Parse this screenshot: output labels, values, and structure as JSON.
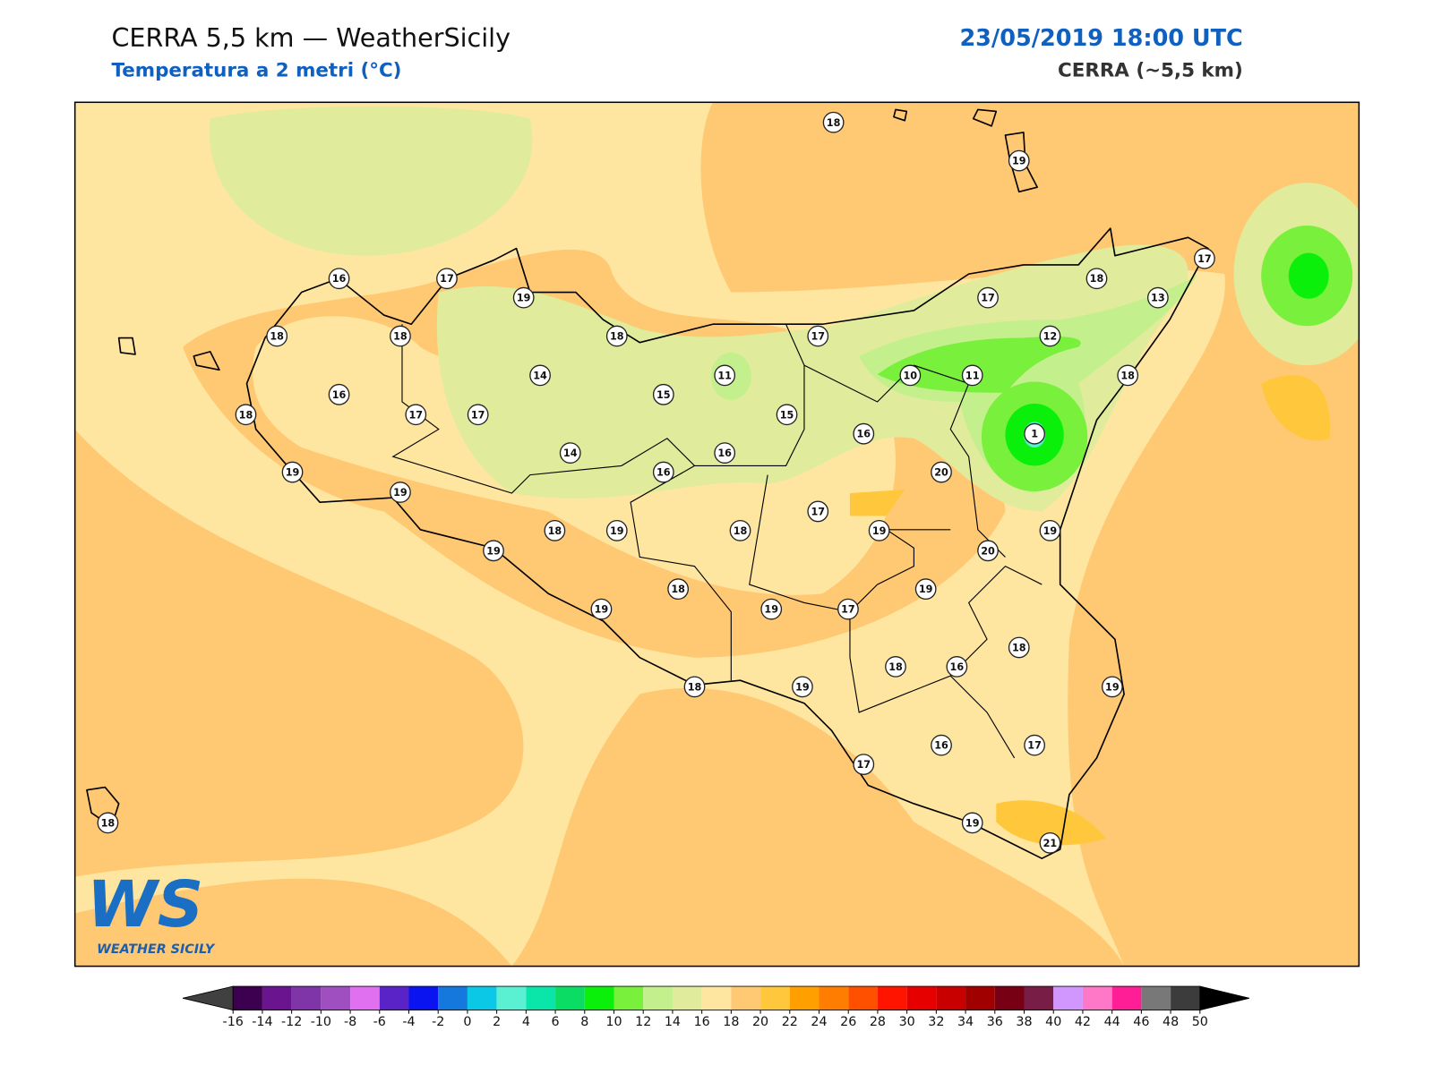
{
  "header": {
    "title": "CERRA 5,5 km — WeatherSicily",
    "subtitle": "Temperatura a 2 metri (°C)",
    "datetime": "23/05/2019 18:00 UTC",
    "model": "CERRA (~5,5 km)"
  },
  "logo": {
    "mark": "WS",
    "name": "WEATHER SICILY"
  },
  "stations": [
    18,
    19,
    16,
    17,
    19,
    17,
    18,
    17,
    13,
    18,
    18,
    18,
    17,
    12,
    14,
    11,
    10,
    11,
    18,
    16,
    15,
    18,
    17,
    17,
    15,
    16,
    1,
    14,
    16,
    16,
    19,
    20,
    19,
    17,
    18,
    19,
    18,
    19,
    19,
    19,
    20,
    18,
    19,
    19,
    19,
    17,
    18,
    18,
    16,
    18,
    19,
    19,
    16,
    17,
    17,
    19,
    21,
    18
  ],
  "colorbar": {
    "ticks": [
      -16,
      -14,
      -12,
      -10,
      -8,
      -6,
      -4,
      -2,
      0,
      2,
      4,
      6,
      8,
      10,
      12,
      14,
      16,
      18,
      20,
      22,
      24,
      26,
      28,
      30,
      32,
      34,
      36,
      38,
      40,
      42,
      44,
      46,
      48,
      50
    ],
    "colors": [
      "#3d0050",
      "#6a1490",
      "#7f35a8",
      "#9f4fc0",
      "#e070f0",
      "#5a23c8",
      "#0a14f0",
      "#1478dc",
      "#0ac8e6",
      "#5af0d2",
      "#0ae6aa",
      "#0adc64",
      "#0af00a",
      "#78f03c",
      "#c3f08c",
      "#e0eb9b",
      "#ffe6a0",
      "#ffc873",
      "#ffc83c",
      "#ffa000",
      "#ff7d00",
      "#ff5000",
      "#ff1400",
      "#e60000",
      "#c80000",
      "#a00000",
      "#780014",
      "#781e46",
      "#d296ff",
      "#ff78c8",
      "#ff1e96",
      "#787878",
      "#3c3c3c"
    ],
    "under_color": "#404040",
    "over_color": "#000000"
  }
}
